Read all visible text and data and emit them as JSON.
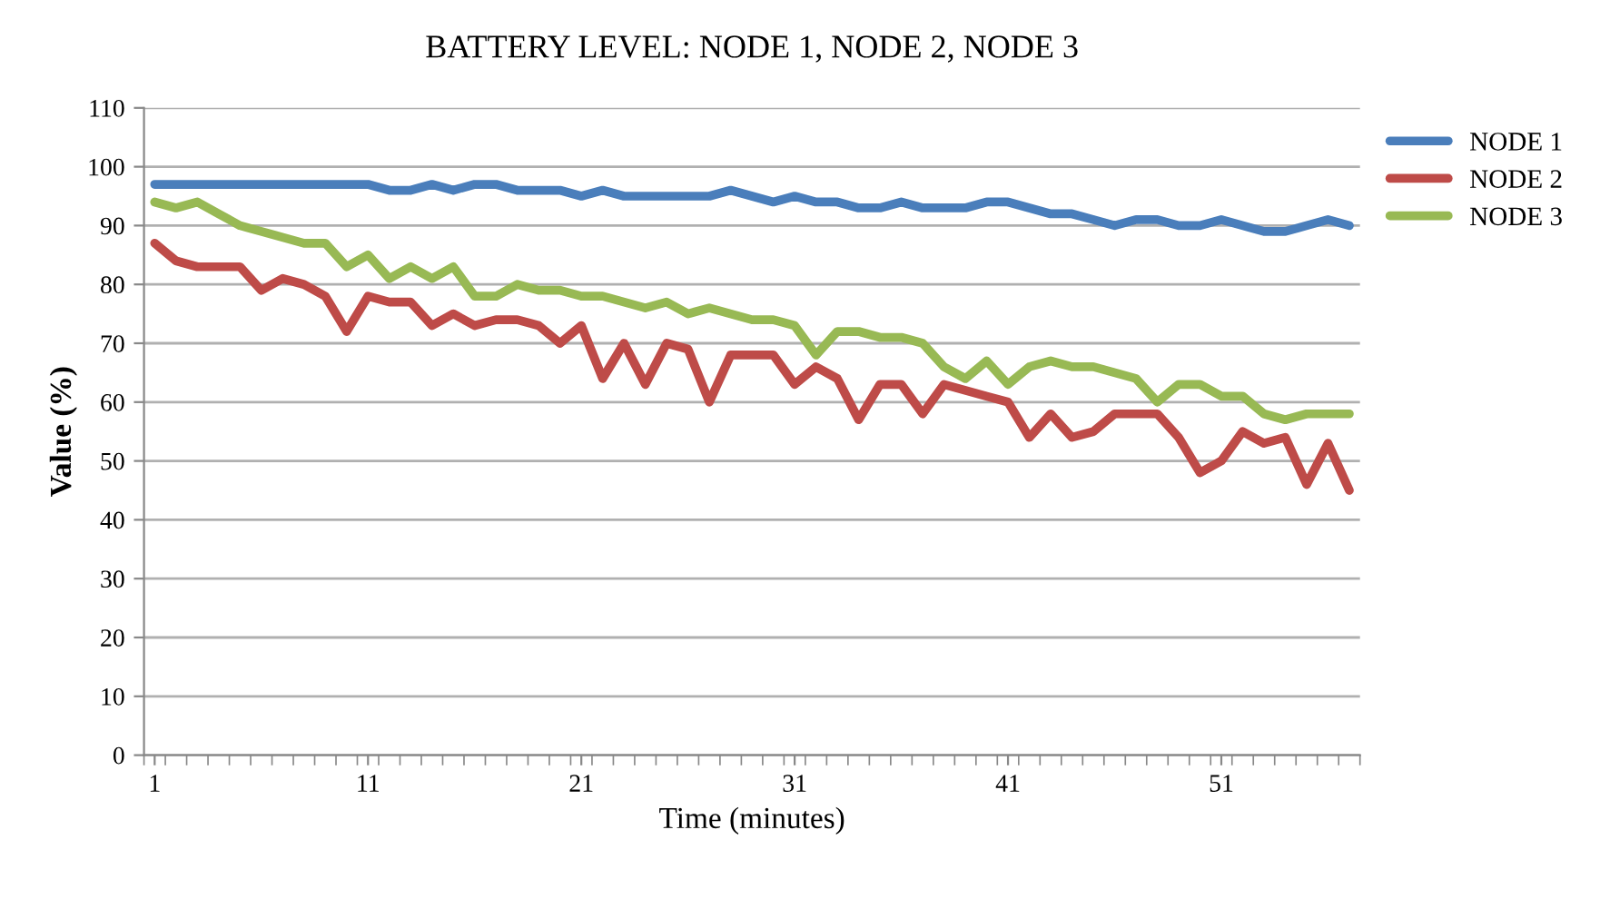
{
  "chart_data": {
    "type": "line",
    "title": "BATTERY LEVEL: NODE 1, NODE 2, NODE 3",
    "xlabel": "Time (minutes)",
    "ylabel": "Value (%)",
    "categories": [
      "1",
      null,
      null,
      null,
      null,
      null,
      null,
      null,
      null,
      null,
      "11",
      null,
      null,
      null,
      null,
      null,
      null,
      null,
      null,
      null,
      "21",
      null,
      null,
      null,
      null,
      null,
      null,
      null,
      null,
      null,
      "31",
      null,
      null,
      null,
      null,
      null,
      null,
      null,
      null,
      null,
      "41",
      null,
      null,
      null,
      null,
      null,
      null,
      null,
      null,
      null,
      "51",
      null,
      null,
      null,
      null,
      null,
      null
    ],
    "series": [
      {
        "name": "NODE 1",
        "color": "#4a7ebb",
        "values": [
          97,
          97,
          97,
          97,
          97,
          97,
          97,
          97,
          97,
          97,
          97,
          96,
          96,
          97,
          96,
          97,
          97,
          96,
          96,
          96,
          95,
          96,
          95,
          95,
          95,
          95,
          95,
          96,
          95,
          94,
          95,
          94,
          94,
          93,
          93,
          94,
          93,
          93,
          93,
          94,
          94,
          93,
          92,
          92,
          91,
          90,
          91,
          91,
          90,
          90,
          91,
          90,
          89,
          89,
          90,
          91,
          90
        ]
      },
      {
        "name": "NODE 2",
        "color": "#be4b48",
        "values": [
          87,
          84,
          83,
          83,
          83,
          79,
          81,
          80,
          78,
          72,
          78,
          77,
          77,
          73,
          75,
          73,
          74,
          74,
          73,
          70,
          73,
          64,
          70,
          63,
          70,
          69,
          60,
          68,
          68,
          68,
          63,
          66,
          64,
          57,
          63,
          63,
          58,
          63,
          62,
          61,
          60,
          54,
          58,
          54,
          55,
          58,
          58,
          58,
          54,
          48,
          50,
          55,
          53,
          54,
          46,
          53,
          45
        ]
      },
      {
        "name": "NODE 3",
        "color": "#98b954",
        "values": [
          94,
          93,
          94,
          92,
          90,
          89,
          88,
          87,
          87,
          83,
          85,
          81,
          83,
          81,
          83,
          78,
          78,
          80,
          79,
          79,
          78,
          78,
          77,
          76,
          77,
          75,
          76,
          75,
          74,
          74,
          73,
          68,
          72,
          72,
          71,
          71,
          70,
          66,
          64,
          67,
          63,
          66,
          67,
          66,
          66,
          65,
          64,
          60,
          63,
          63,
          61,
          61,
          58,
          57,
          58,
          58,
          58
        ]
      }
    ],
    "ylim": [
      0,
      110
    ],
    "yticks": [
      0,
      10,
      20,
      30,
      40,
      50,
      60,
      70,
      80,
      90,
      100,
      110
    ],
    "grid": "y",
    "legend": "top right",
    "marker": "none",
    "line_style": "solid"
  }
}
